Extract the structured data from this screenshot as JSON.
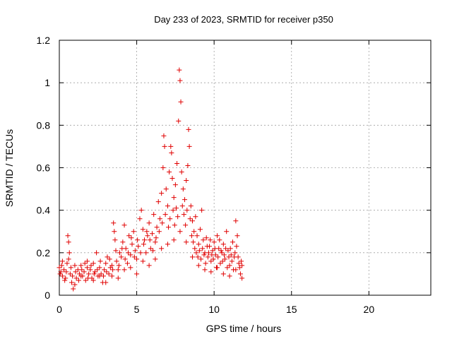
{
  "chart_data": {
    "type": "scatter",
    "title": "Day 233 of 2023, SRMTID for receiver p350",
    "xlabel": "GPS time / hours",
    "ylabel": "SRMTID / TECUs",
    "xlim": [
      0,
      24
    ],
    "ylim": [
      0,
      1.2
    ],
    "x_ticks": [
      0,
      5,
      10,
      15,
      20
    ],
    "x_tick_labels": [
      "0",
      "5",
      "10",
      "15",
      "20"
    ],
    "y_ticks": [
      0,
      0.2,
      0.4,
      0.6,
      0.8,
      1.0,
      1.2
    ],
    "y_tick_labels": [
      "0",
      "0.2",
      "0.4",
      "0.6",
      "0.8",
      "1",
      "1.2"
    ],
    "grid": true,
    "marker": "+",
    "series_color": "#e00000",
    "series": [
      {
        "name": "SRMTID",
        "points": [
          [
            0.0,
            0.13
          ],
          [
            0.1,
            0.11
          ],
          [
            0.2,
            0.09
          ],
          [
            0.3,
            0.12
          ],
          [
            0.4,
            0.08
          ],
          [
            0.5,
            0.15
          ],
          [
            0.55,
            0.28
          ],
          [
            0.6,
            0.25
          ],
          [
            0.65,
            0.2
          ],
          [
            0.7,
            0.1
          ],
          [
            0.8,
            0.06
          ],
          [
            0.9,
            0.03
          ],
          [
            1.0,
            0.05
          ],
          [
            1.1,
            0.08
          ],
          [
            1.2,
            0.12
          ],
          [
            1.3,
            0.1
          ],
          [
            1.4,
            0.14
          ],
          [
            1.5,
            0.09
          ],
          [
            1.6,
            0.11
          ],
          [
            1.7,
            0.07
          ],
          [
            1.8,
            0.13
          ],
          [
            1.9,
            0.1
          ],
          [
            2.0,
            0.12
          ],
          [
            2.1,
            0.08
          ],
          [
            2.2,
            0.15
          ],
          [
            2.3,
            0.11
          ],
          [
            2.4,
            0.2
          ],
          [
            2.5,
            0.09
          ],
          [
            2.6,
            0.13
          ],
          [
            2.7,
            0.1
          ],
          [
            2.8,
            0.06
          ],
          [
            2.9,
            0.12
          ],
          [
            3.0,
            0.15
          ],
          [
            3.1,
            0.18
          ],
          [
            3.2,
            0.1
          ],
          [
            3.3,
            0.13
          ],
          [
            3.4,
            0.09
          ],
          [
            3.5,
            0.34
          ],
          [
            3.55,
            0.3
          ],
          [
            3.6,
            0.26
          ],
          [
            3.7,
            0.16
          ],
          [
            3.8,
            0.12
          ],
          [
            3.9,
            0.2
          ],
          [
            4.0,
            0.18
          ],
          [
            4.1,
            0.25
          ],
          [
            4.2,
            0.33
          ],
          [
            4.3,
            0.22
          ],
          [
            4.4,
            0.15
          ],
          [
            4.5,
            0.28
          ],
          [
            4.6,
            0.19
          ],
          [
            4.7,
            0.24
          ],
          [
            4.8,
            0.3
          ],
          [
            4.9,
            0.21
          ],
          [
            5.0,
            0.17
          ],
          [
            5.1,
            0.23
          ],
          [
            5.2,
            0.36
          ],
          [
            5.3,
            0.4
          ],
          [
            5.4,
            0.31
          ],
          [
            5.5,
            0.26
          ],
          [
            5.6,
            0.2
          ],
          [
            5.7,
            0.28
          ],
          [
            5.8,
            0.34
          ],
          [
            5.9,
            0.22
          ],
          [
            6.0,
            0.29
          ],
          [
            6.1,
            0.38
          ],
          [
            6.2,
            0.25
          ],
          [
            6.3,
            0.32
          ],
          [
            6.4,
            0.44
          ],
          [
            6.5,
            0.36
          ],
          [
            6.6,
            0.48
          ],
          [
            6.7,
            0.6
          ],
          [
            6.75,
            0.75
          ],
          [
            6.8,
            0.7
          ],
          [
            6.9,
            0.5
          ],
          [
            7.0,
            0.42
          ],
          [
            7.1,
            0.58
          ],
          [
            7.2,
            0.7
          ],
          [
            7.25,
            0.67
          ],
          [
            7.3,
            0.55
          ],
          [
            7.4,
            0.46
          ],
          [
            7.5,
            0.52
          ],
          [
            7.6,
            0.62
          ],
          [
            7.7,
            0.82
          ],
          [
            7.75,
            1.06
          ],
          [
            7.8,
            1.01
          ],
          [
            7.85,
            0.91
          ],
          [
            7.9,
            0.58
          ],
          [
            8.0,
            0.5
          ],
          [
            8.1,
            0.45
          ],
          [
            8.2,
            0.54
          ],
          [
            8.3,
            0.61
          ],
          [
            8.35,
            0.78
          ],
          [
            8.4,
            0.7
          ],
          [
            8.5,
            0.42
          ],
          [
            8.6,
            0.35
          ],
          [
            8.7,
            0.3
          ],
          [
            8.8,
            0.37
          ],
          [
            8.9,
            0.28
          ],
          [
            9.0,
            0.24
          ],
          [
            9.1,
            0.31
          ],
          [
            9.2,
            0.4
          ],
          [
            9.3,
            0.26
          ],
          [
            9.4,
            0.2
          ],
          [
            9.5,
            0.27
          ],
          [
            9.6,
            0.18
          ],
          [
            9.7,
            0.23
          ],
          [
            9.8,
            0.16
          ],
          [
            9.9,
            0.21
          ],
          [
            10.0,
            0.25
          ],
          [
            10.1,
            0.19
          ],
          [
            10.2,
            0.28
          ],
          [
            10.3,
            0.22
          ],
          [
            10.4,
            0.15
          ],
          [
            10.5,
            0.2
          ],
          [
            10.6,
            0.24
          ],
          [
            10.7,
            0.17
          ],
          [
            10.8,
            0.3
          ],
          [
            10.9,
            0.21
          ],
          [
            11.0,
            0.14
          ],
          [
            11.1,
            0.19
          ],
          [
            11.2,
            0.25
          ],
          [
            11.3,
            0.18
          ],
          [
            11.4,
            0.35
          ],
          [
            11.5,
            0.28
          ],
          [
            11.6,
            0.15
          ],
          [
            11.7,
            0.1
          ],
          [
            11.8,
            0.08
          ],
          [
            0.05,
            0.1
          ],
          [
            0.15,
            0.14
          ],
          [
            0.35,
            0.07
          ],
          [
            0.45,
            0.11
          ],
          [
            0.75,
            0.13
          ],
          [
            0.85,
            0.09
          ],
          [
            1.05,
            0.11
          ],
          [
            1.25,
            0.07
          ],
          [
            1.45,
            0.12
          ],
          [
            1.65,
            0.15
          ],
          [
            1.85,
            0.08
          ],
          [
            2.05,
            0.14
          ],
          [
            2.25,
            0.1
          ],
          [
            2.45,
            0.12
          ],
          [
            2.65,
            0.16
          ],
          [
            2.85,
            0.09
          ],
          [
            3.05,
            0.11
          ],
          [
            3.25,
            0.17
          ],
          [
            3.45,
            0.12
          ],
          [
            3.65,
            0.21
          ],
          [
            3.85,
            0.14
          ],
          [
            4.05,
            0.22
          ],
          [
            4.25,
            0.17
          ],
          [
            4.45,
            0.2
          ],
          [
            4.65,
            0.27
          ],
          [
            4.85,
            0.18
          ],
          [
            5.05,
            0.26
          ],
          [
            5.25,
            0.2
          ],
          [
            5.45,
            0.24
          ],
          [
            5.65,
            0.3
          ],
          [
            5.85,
            0.26
          ],
          [
            6.05,
            0.21
          ],
          [
            6.25,
            0.27
          ],
          [
            6.45,
            0.3
          ],
          [
            6.65,
            0.34
          ],
          [
            6.85,
            0.38
          ],
          [
            7.05,
            0.32
          ],
          [
            7.15,
            0.36
          ],
          [
            7.35,
            0.4
          ],
          [
            7.45,
            0.33
          ],
          [
            7.55,
            0.41
          ],
          [
            7.65,
            0.37
          ],
          [
            7.95,
            0.42
          ],
          [
            8.05,
            0.38
          ],
          [
            8.15,
            0.33
          ],
          [
            8.25,
            0.4
          ],
          [
            8.45,
            0.36
          ],
          [
            8.55,
            0.28
          ],
          [
            8.65,
            0.25
          ],
          [
            8.75,
            0.22
          ],
          [
            8.85,
            0.2
          ],
          [
            8.95,
            0.18
          ],
          [
            9.05,
            0.21
          ],
          [
            9.15,
            0.17
          ],
          [
            9.25,
            0.22
          ],
          [
            9.35,
            0.19
          ],
          [
            9.45,
            0.15
          ],
          [
            9.55,
            0.23
          ],
          [
            9.65,
            0.2
          ],
          [
            9.75,
            0.26
          ],
          [
            9.85,
            0.19
          ],
          [
            9.95,
            0.17
          ],
          [
            10.05,
            0.22
          ],
          [
            10.15,
            0.13
          ],
          [
            10.25,
            0.18
          ],
          [
            10.35,
            0.26
          ],
          [
            10.45,
            0.21
          ],
          [
            10.55,
            0.16
          ],
          [
            10.65,
            0.19
          ],
          [
            10.75,
            0.22
          ],
          [
            10.85,
            0.13
          ],
          [
            10.95,
            0.18
          ],
          [
            11.05,
            0.22
          ],
          [
            11.15,
            0.16
          ],
          [
            11.25,
            0.12
          ],
          [
            11.35,
            0.2
          ],
          [
            11.45,
            0.23
          ],
          [
            11.55,
            0.18
          ],
          [
            11.65,
            0.13
          ],
          [
            11.75,
            0.16
          ],
          [
            0.2,
            0.16
          ],
          [
            0.6,
            0.17
          ],
          [
            1.0,
            0.14
          ],
          [
            1.4,
            0.09
          ],
          [
            1.8,
            0.16
          ],
          [
            2.2,
            0.07
          ],
          [
            2.6,
            0.09
          ],
          [
            3.0,
            0.06
          ],
          [
            3.4,
            0.14
          ],
          [
            3.8,
            0.08
          ],
          [
            4.2,
            0.12
          ],
          [
            4.6,
            0.13
          ],
          [
            5.0,
            0.1
          ],
          [
            5.4,
            0.16
          ],
          [
            5.8,
            0.14
          ],
          [
            6.2,
            0.17
          ],
          [
            6.6,
            0.22
          ],
          [
            7.0,
            0.24
          ],
          [
            7.4,
            0.26
          ],
          [
            7.8,
            0.3
          ],
          [
            8.2,
            0.25
          ],
          [
            8.6,
            0.18
          ],
          [
            9.0,
            0.14
          ],
          [
            9.4,
            0.12
          ],
          [
            9.8,
            0.11
          ],
          [
            10.2,
            0.13
          ],
          [
            10.6,
            0.1
          ],
          [
            11.0,
            0.09
          ],
          [
            11.4,
            0.12
          ],
          [
            11.8,
            0.14
          ]
        ]
      }
    ]
  }
}
